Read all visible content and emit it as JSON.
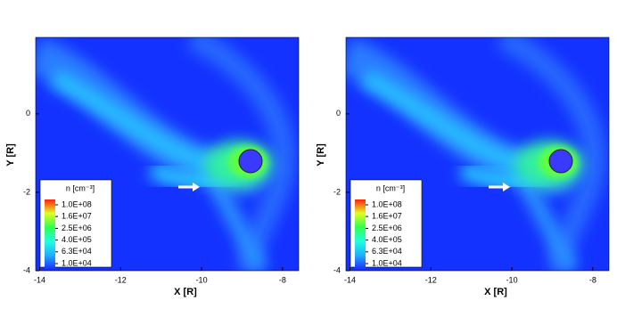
{
  "chart_data": [
    {
      "type": "contour",
      "x_label": "X [R]",
      "y_label": "Y [R]",
      "xlim": [
        -14.1,
        -7.6
      ],
      "ylim": [
        -4,
        1.95
      ],
      "xticks": [
        -14,
        -12,
        -10,
        -8
      ],
      "yticks": [
        -4,
        -2,
        0
      ],
      "colorbar": {
        "title": "n [cm⁻³]",
        "lim": [
          10000,
          100000000
        ],
        "log": true,
        "colormap": [
          "#2030ff",
          "#20b0ff",
          "#20ffe0",
          "#30ff50",
          "#e0ff20",
          "#ff2010"
        ],
        "ticks": [
          {
            "value": 100000000,
            "label": "1.0E+08"
          },
          {
            "value": 16000000,
            "label": "1.6E+07"
          },
          {
            "value": 2500000,
            "label": "2.5E+06"
          },
          {
            "value": 400000,
            "label": "4.0E+05"
          },
          {
            "value": 63000,
            "label": "6.3E+04"
          },
          {
            "value": 10000,
            "label": "1.0E+04"
          }
        ]
      }
    },
    {
      "type": "contour",
      "x_label": "X [R]",
      "y_label": "Y [R]",
      "xlim": [
        -14.1,
        -7.6
      ],
      "ylim": [
        -4,
        1.95
      ],
      "xticks": [
        -14,
        -12,
        -10,
        -8
      ],
      "yticks": [
        -4,
        -2,
        0
      ],
      "colorbar": {
        "title": "n [cm⁻³]",
        "lim": [
          10000,
          100000000
        ],
        "log": true,
        "colormap": [
          "#2030ff",
          "#20b0ff",
          "#20ffe0",
          "#30ff50",
          "#e0ff20",
          "#ff2010"
        ],
        "ticks": [
          {
            "value": 100000000,
            "label": "1.0E+08"
          },
          {
            "value": 16000000,
            "label": "1.6E+07"
          },
          {
            "value": 2500000,
            "label": "2.5E+06"
          },
          {
            "value": 400000,
            "label": "4.0E+05"
          },
          {
            "value": 63000,
            "label": "6.3E+04"
          },
          {
            "value": 10000,
            "label": "1.0E+04"
          }
        ]
      }
    }
  ]
}
